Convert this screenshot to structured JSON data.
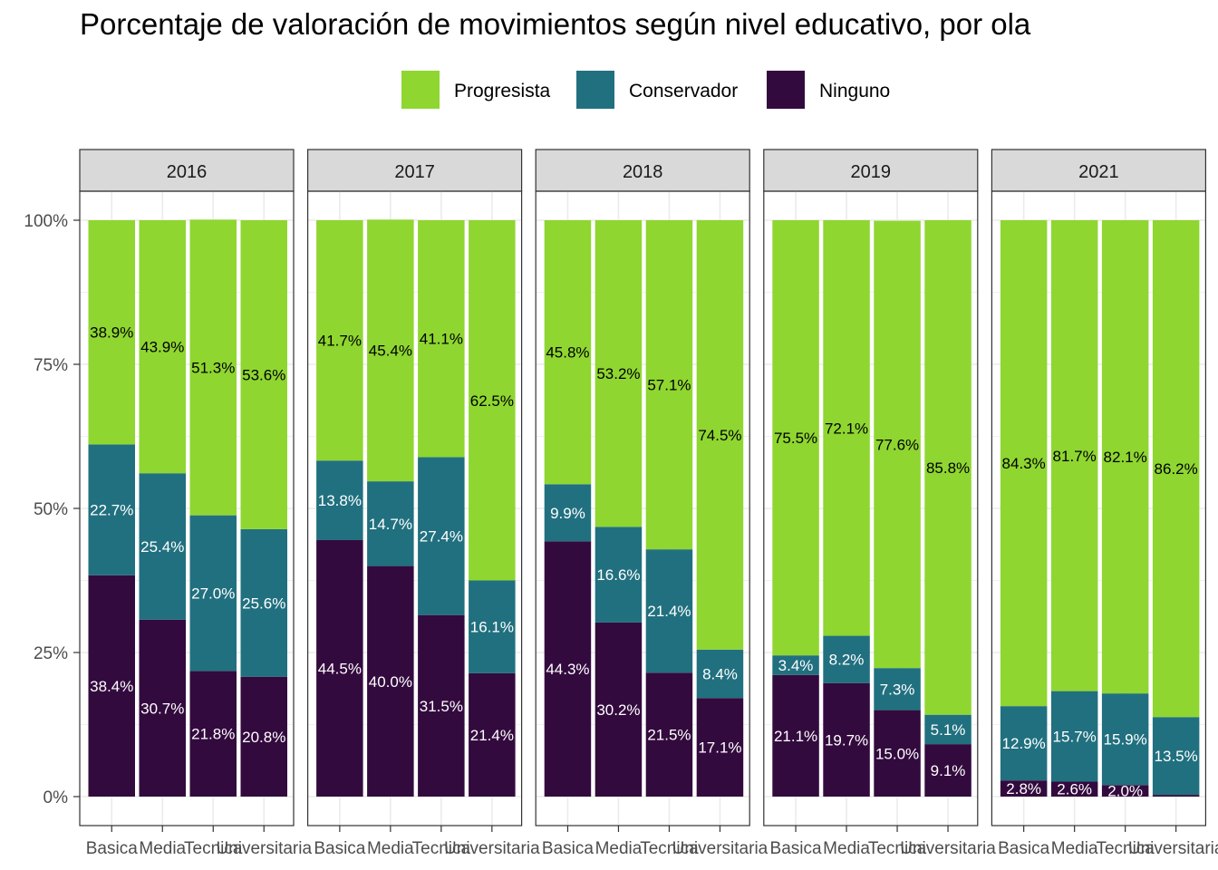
{
  "chart_data": {
    "type": "bar",
    "title": "Porcentaje de valoración de movimientos según nivel educativo, por ola",
    "legend": {
      "position": "top",
      "entries": [
        "Progresista",
        "Conservador",
        "Ninguno"
      ]
    },
    "colors": {
      "Progresista": "#8fd631",
      "Conservador": "#21707f",
      "Ninguno": "#330a3e",
      "strip_fill": "#d9d9d9",
      "grid": "#ebebeb"
    },
    "stack_order_bottom_to_top": [
      "Ninguno",
      "Conservador",
      "Progresista"
    ],
    "categories": [
      "Basica",
      "Media",
      "Tecnica",
      "Universitaria"
    ],
    "category_tick_labels": [
      "Basica",
      "Media",
      "Tecnica",
      "Universitaria"
    ],
    "y_ticks": [
      "0%",
      "25%",
      "50%",
      "75%",
      "100%"
    ],
    "ylim": [
      0,
      100
    ],
    "grid": true,
    "panels": [
      {
        "label": "2016",
        "bars": [
          {
            "category": "Basica",
            "Ninguno": 38.4,
            "Conservador": 22.7,
            "Progresista": 38.9,
            "labels": [
              "38.4%",
              "22.7%",
              "38.9%"
            ]
          },
          {
            "category": "Media",
            "Ninguno": 30.7,
            "Conservador": 25.4,
            "Progresista": 43.9,
            "labels": [
              "30.7%",
              "25.4%",
              "43.9%"
            ]
          },
          {
            "category": "Tecnica",
            "Ninguno": 21.8,
            "Conservador": 27.0,
            "Progresista": 51.3,
            "labels": [
              "21.8%",
              "27.0%",
              "51.3%"
            ]
          },
          {
            "category": "Universitaria",
            "Ninguno": 20.8,
            "Conservador": 25.6,
            "Progresista": 53.6,
            "labels": [
              "20.8%",
              "25.6%",
              "53.6%"
            ]
          }
        ]
      },
      {
        "label": "2017",
        "bars": [
          {
            "category": "Basica",
            "Ninguno": 44.5,
            "Conservador": 13.8,
            "Progresista": 41.7,
            "labels": [
              "44.5%",
              "13.8%",
              "41.7%"
            ]
          },
          {
            "category": "Media",
            "Ninguno": 40.0,
            "Conservador": 14.7,
            "Progresista": 45.4,
            "labels": [
              "40.0%",
              "14.7%",
              "45.4%"
            ]
          },
          {
            "category": "Tecnica",
            "Ninguno": 31.5,
            "Conservador": 27.4,
            "Progresista": 41.1,
            "labels": [
              "31.5%",
              "27.4%",
              "41.1%"
            ]
          },
          {
            "category": "Universitaria",
            "Ninguno": 21.4,
            "Conservador": 16.1,
            "Progresista": 62.5,
            "labels": [
              "21.4%",
              "16.1%",
              "62.5%"
            ]
          }
        ]
      },
      {
        "label": "2018",
        "bars": [
          {
            "category": "Basica",
            "Ninguno": 44.3,
            "Conservador": 9.9,
            "Progresista": 45.8,
            "labels": [
              "44.3%",
              "9.9%",
              "45.8%"
            ]
          },
          {
            "category": "Media",
            "Ninguno": 30.2,
            "Conservador": 16.6,
            "Progresista": 53.2,
            "labels": [
              "30.2%",
              "16.6%",
              "53.2%"
            ]
          },
          {
            "category": "Tecnica",
            "Ninguno": 21.5,
            "Conservador": 21.4,
            "Progresista": 57.1,
            "labels": [
              "21.5%",
              "21.4%",
              "57.1%"
            ]
          },
          {
            "category": "Universitaria",
            "Ninguno": 17.1,
            "Conservador": 8.4,
            "Progresista": 74.5,
            "labels": [
              "17.1%",
              "8.4%",
              "74.5%"
            ]
          }
        ]
      },
      {
        "label": "2019",
        "bars": [
          {
            "category": "Basica",
            "Ninguno": 21.1,
            "Conservador": 3.4,
            "Progresista": 75.5,
            "labels": [
              "21.1%",
              "3.4%",
              "75.5%"
            ]
          },
          {
            "category": "Media",
            "Ninguno": 19.7,
            "Conservador": 8.2,
            "Progresista": 72.1,
            "labels": [
              "19.7%",
              "8.2%",
              "72.1%"
            ]
          },
          {
            "category": "Tecnica",
            "Ninguno": 15.0,
            "Conservador": 7.3,
            "Progresista": 77.6,
            "labels": [
              "15.0%",
              "7.3%",
              "77.6%"
            ]
          },
          {
            "category": "Universitaria",
            "Ninguno": 9.1,
            "Conservador": 5.1,
            "Progresista": 85.8,
            "labels": [
              "9.1%",
              "5.1%",
              "85.8%"
            ]
          }
        ]
      },
      {
        "label": "2021",
        "bars": [
          {
            "category": "Basica",
            "Ninguno": 2.8,
            "Conservador": 12.9,
            "Progresista": 84.3,
            "labels": [
              "2.8%",
              "12.9%",
              "84.3%"
            ]
          },
          {
            "category": "Media",
            "Ninguno": 2.6,
            "Conservador": 15.7,
            "Progresista": 81.7,
            "labels": [
              "2.6%",
              "15.7%",
              "81.7%"
            ]
          },
          {
            "category": "Tecnica",
            "Ninguno": 2.0,
            "Conservador": 15.9,
            "Progresista": 82.1,
            "labels": [
              "2.0%",
              "15.9%",
              "82.1%"
            ]
          },
          {
            "category": "Universitaria",
            "Ninguno": 0.3,
            "Conservador": 13.5,
            "Progresista": 86.2,
            "labels": [
              "",
              "13.5%",
              "86.2%"
            ]
          }
        ]
      }
    ]
  }
}
